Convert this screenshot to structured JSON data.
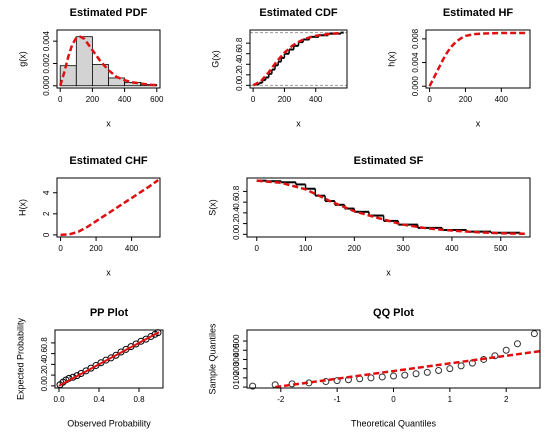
{
  "chart_data": [
    {
      "type": "histogram",
      "title": "Estimated PDF",
      "xlabel": "x",
      "ylabel": "g(x)",
      "xlim": [
        -20,
        620
      ],
      "ylim": [
        -0.0002,
        0.005
      ],
      "xticks": [
        0,
        200,
        400,
        600
      ],
      "yticks": [
        {
          "value": 0,
          "label": "0.000"
        },
        {
          "value": 0.002,
          "label": "0.002"
        },
        {
          "value": 0.004,
          "label": "0.004"
        }
      ],
      "series": [
        {
          "style": "bars",
          "color": "#d3d3d3",
          "bins": [
            0,
            100,
            200,
            300,
            400,
            500,
            600
          ],
          "values": [
            0.0018,
            0.0044,
            0.0019,
            0.0007,
            0.0003,
            0.0001
          ]
        },
        {
          "style": "dashed",
          "color": "#e01010",
          "x": [
            0,
            25,
            50,
            75,
            100,
            125,
            150,
            175,
            200,
            250,
            300,
            350,
            400,
            450,
            500,
            550,
            600
          ],
          "values": [
            0,
            0.0012,
            0.0026,
            0.0037,
            0.0043,
            0.0044,
            0.0042,
            0.0037,
            0.0032,
            0.0022,
            0.0014,
            0.0008,
            0.0005,
            0.0003,
            0.0002,
            0.0001,
            5e-05
          ]
        }
      ]
    },
    {
      "type": "line",
      "title": "Estimated CDF",
      "xlabel": "x",
      "ylabel": "G(x)",
      "xlim": [
        -20,
        600
      ],
      "ylim": [
        -0.05,
        1.05
      ],
      "xticks": [
        0,
        200,
        400
      ],
      "yticks": [
        {
          "value": 0,
          "label": "0.0"
        },
        {
          "value": 0.2,
          "label": "0.2"
        },
        {
          "value": 0.4,
          "label": "0.4"
        },
        {
          "value": 0.6,
          "label": "0.6"
        },
        {
          "value": 0.8,
          "label": "0.8"
        }
      ],
      "series": [
        {
          "style": "step",
          "color": "#000000",
          "x": [
            20,
            40,
            60,
            80,
            100,
            120,
            140,
            160,
            180,
            200,
            230,
            260,
            290,
            320,
            360,
            420,
            480,
            560
          ],
          "values": [
            0.02,
            0.05,
            0.1,
            0.15,
            0.22,
            0.3,
            0.38,
            0.45,
            0.52,
            0.6,
            0.68,
            0.75,
            0.82,
            0.87,
            0.92,
            0.95,
            0.98,
            1.0
          ]
        },
        {
          "style": "dashed",
          "color": "#e01010",
          "x": [
            0,
            50,
            100,
            150,
            200,
            250,
            300,
            350,
            400,
            450,
            500,
            550
          ],
          "values": [
            0,
            0.08,
            0.25,
            0.45,
            0.62,
            0.75,
            0.84,
            0.9,
            0.94,
            0.96,
            0.98,
            0.99
          ]
        }
      ]
    },
    {
      "type": "line",
      "title": "Estimated HF",
      "xlabel": "x",
      "ylabel": "h(x)",
      "xlim": [
        -20,
        560
      ],
      "ylim": [
        -0.0003,
        0.0095
      ],
      "xticks": [
        0,
        200,
        400
      ],
      "yticks": [
        {
          "value": 0,
          "label": "0.000"
        },
        {
          "value": 0.004,
          "label": "0.004"
        },
        {
          "value": 0.008,
          "label": "0.008"
        }
      ],
      "series": [
        {
          "style": "dashed",
          "color": "#e01010",
          "x": [
            0,
            25,
            50,
            75,
            100,
            125,
            150,
            175,
            200,
            250,
            300,
            400,
            500,
            550
          ],
          "values": [
            0,
            0.0015,
            0.003,
            0.0045,
            0.0058,
            0.0068,
            0.0076,
            0.0081,
            0.0085,
            0.0088,
            0.0089,
            0.009,
            0.009,
            0.009
          ]
        }
      ]
    },
    {
      "type": "line",
      "title": "Estimated CHF",
      "xlabel": "x",
      "ylabel": "H(x)",
      "xlim": [
        -20,
        560
      ],
      "ylim": [
        -0.2,
        5.4
      ],
      "xticks": [
        0,
        200,
        400
      ],
      "yticks": [
        0,
        2,
        4
      ],
      "series": [
        {
          "style": "dashed",
          "color": "#e01010",
          "x": [
            0,
            50,
            100,
            150,
            200,
            300,
            400,
            500,
            550
          ],
          "values": [
            0,
            0.05,
            0.3,
            0.75,
            1.3,
            2.4,
            3.5,
            4.6,
            5.2
          ]
        }
      ]
    },
    {
      "type": "line",
      "title": "Estimated SF",
      "xlabel": "x",
      "ylabel": "S(x)",
      "xlim": [
        -20,
        560
      ],
      "ylim": [
        -0.05,
        1.05
      ],
      "xticks": [
        0,
        100,
        200,
        300,
        400,
        500
      ],
      "yticks": [
        {
          "value": 0,
          "label": "0.0"
        },
        {
          "value": 0.2,
          "label": "0.2"
        },
        {
          "value": 0.4,
          "label": "0.4"
        },
        {
          "value": 0.6,
          "label": "0.6"
        },
        {
          "value": 0.8,
          "label": "0.8"
        }
      ],
      "series": [
        {
          "style": "step",
          "color": "#000000",
          "x": [
            0,
            20,
            50,
            80,
            100,
            120,
            140,
            160,
            180,
            200,
            230,
            260,
            290,
            330,
            380,
            430,
            480,
            540
          ],
          "values": [
            1.0,
            0.99,
            0.97,
            0.93,
            0.85,
            0.72,
            0.62,
            0.55,
            0.48,
            0.42,
            0.35,
            0.25,
            0.18,
            0.12,
            0.08,
            0.05,
            0.03,
            0.01
          ]
        },
        {
          "style": "dashed",
          "color": "#e01010",
          "x": [
            0,
            50,
            100,
            150,
            200,
            250,
            300,
            350,
            400,
            450,
            500,
            550
          ],
          "values": [
            1,
            0.96,
            0.84,
            0.62,
            0.43,
            0.3,
            0.18,
            0.11,
            0.07,
            0.04,
            0.02,
            0.01
          ]
        }
      ]
    },
    {
      "type": "scatter",
      "title": "PP Plot",
      "xlabel": "Observed Probability",
      "ylabel": "Expected Probability",
      "xlim": [
        -0.04,
        1.04
      ],
      "ylim": [
        -0.04,
        1.04
      ],
      "xticks": [
        {
          "value": 0,
          "label": "0.0"
        },
        {
          "value": 0.4,
          "label": "0.4"
        },
        {
          "value": 0.8,
          "label": "0.8"
        }
      ],
      "yticks": [
        {
          "value": 0,
          "label": "0.0"
        },
        {
          "value": 0.2,
          "label": "0.2"
        },
        {
          "value": 0.4,
          "label": "0.4"
        },
        {
          "value": 0.6,
          "label": "0.6"
        },
        {
          "value": 0.8,
          "label": "0.8"
        }
      ],
      "series": [
        {
          "style": "points",
          "color": "#000000",
          "x": [
            0.01,
            0.04,
            0.07,
            0.1,
            0.14,
            0.18,
            0.22,
            0.27,
            0.32,
            0.37,
            0.42,
            0.47,
            0.52,
            0.57,
            0.62,
            0.67,
            0.72,
            0.77,
            0.82,
            0.87,
            0.92,
            0.96,
            0.99
          ],
          "values": [
            0.02,
            0.07,
            0.11,
            0.14,
            0.16,
            0.19,
            0.23,
            0.28,
            0.33,
            0.38,
            0.43,
            0.48,
            0.52,
            0.57,
            0.63,
            0.68,
            0.73,
            0.78,
            0.83,
            0.87,
            0.92,
            0.96,
            0.99
          ]
        },
        {
          "style": "solid",
          "color": "#e01010",
          "x": [
            0,
            1
          ],
          "values": [
            0,
            1
          ]
        }
      ]
    },
    {
      "type": "scatter",
      "title": "QQ Plot",
      "xlabel": "Theoretical Quantiles",
      "ylabel": "Sample Quantiles",
      "xlim": [
        -2.6,
        2.6
      ],
      "ylim": [
        -10,
        620
      ],
      "xticks": [
        -2,
        -1,
        0,
        1,
        2
      ],
      "yticks": [
        0,
        100,
        200,
        300,
        400,
        500
      ],
      "series": [
        {
          "style": "points",
          "color": "#333333",
          "x": [
            -2.5,
            -2.1,
            -1.8,
            -1.5,
            -1.2,
            -1.0,
            -0.8,
            -0.6,
            -0.4,
            -0.2,
            0,
            0.2,
            0.4,
            0.6,
            0.8,
            1.0,
            1.2,
            1.4,
            1.6,
            1.8,
            2.0,
            2.2,
            2.5
          ],
          "values": [
            10,
            25,
            35,
            45,
            60,
            70,
            80,
            90,
            100,
            110,
            120,
            130,
            145,
            160,
            180,
            200,
            230,
            260,
            300,
            340,
            400,
            470,
            580
          ]
        },
        {
          "style": "dashed",
          "color": "#e01010",
          "x": [
            -2.1,
            2.6
          ],
          "values": [
            0,
            390
          ]
        }
      ]
    }
  ]
}
